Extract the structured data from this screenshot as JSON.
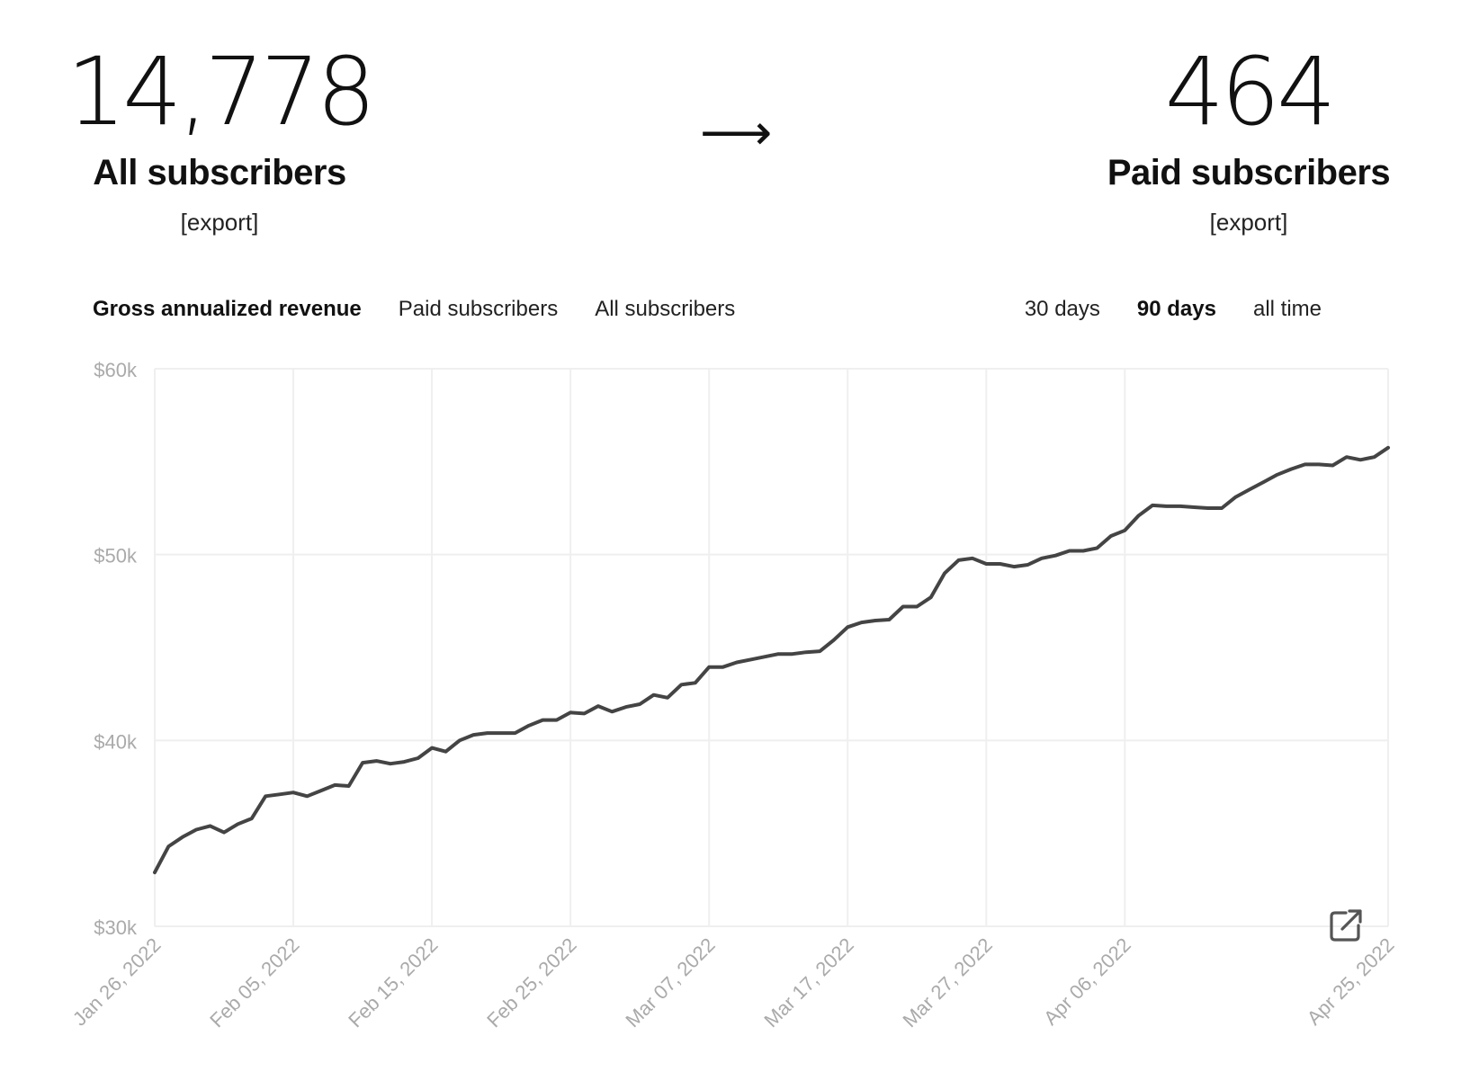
{
  "stats": {
    "all": {
      "value": "14,778",
      "label": "All subscribers",
      "export": "[export]"
    },
    "paid": {
      "value": "464",
      "label": "Paid subscribers",
      "export": "[export]"
    },
    "arrow": "⟶"
  },
  "metric_tabs": [
    {
      "label": "Gross annualized revenue",
      "active": true
    },
    {
      "label": "Paid subscribers",
      "active": false
    },
    {
      "label": "All subscribers",
      "active": false
    }
  ],
  "range_tabs": [
    {
      "label": "30 days",
      "active": false
    },
    {
      "label": "90 days",
      "active": true
    },
    {
      "label": "all time",
      "active": false
    }
  ],
  "colors": {
    "line": "#444444",
    "grid": "#efefef",
    "tick_text": "#aaaaaa",
    "icon": "#555555"
  },
  "icons": {
    "open_external": "external-link-icon"
  },
  "chart_data": {
    "type": "line",
    "title": "",
    "xlabel": "",
    "ylabel": "",
    "x_start": "Jan 26, 2022",
    "x_end": "Apr 25, 2022",
    "x_ticks": [
      "Jan 26, 2022",
      "Feb 05, 2022",
      "Feb 15, 2022",
      "Feb 25, 2022",
      "Mar 07, 2022",
      "Mar 17, 2022",
      "Mar 27, 2022",
      "Apr 06, 2022",
      "Apr 25, 2022"
    ],
    "y_ticks": [
      30000,
      40000,
      50000,
      60000
    ],
    "y_tick_labels": [
      "$30k",
      "$40k",
      "$50k",
      "$60k"
    ],
    "ylim": [
      30000,
      60000
    ],
    "grid": true,
    "series": [
      {
        "values": [
          32900,
          34300,
          34800,
          35200,
          35400,
          35050,
          35500,
          35800,
          37000,
          37100,
          37200,
          37000,
          37300,
          37600,
          37550,
          38800,
          38900,
          38750,
          38850,
          39050,
          39600,
          39400,
          40000,
          40300,
          40400,
          40400,
          40400,
          40800,
          41100,
          41100,
          41500,
          41450,
          41850,
          41550,
          41800,
          41950,
          42450,
          42300,
          43000,
          43100,
          43950,
          43950,
          44200,
          44350,
          44500,
          44650,
          44650,
          44750,
          44800,
          45400,
          46100,
          46350,
          46450,
          46500,
          47200,
          47200,
          47700,
          49000,
          49700,
          49800,
          49500,
          49500,
          49350,
          49450,
          49800,
          49950,
          50200,
          50200,
          50350,
          51000,
          51300,
          52100,
          52650,
          52600,
          52600,
          52550,
          52500,
          52500,
          53100,
          53500,
          53900,
          54300,
          54600,
          54850,
          54850,
          54800,
          55250,
          55100,
          55250,
          55750
        ]
      }
    ]
  }
}
